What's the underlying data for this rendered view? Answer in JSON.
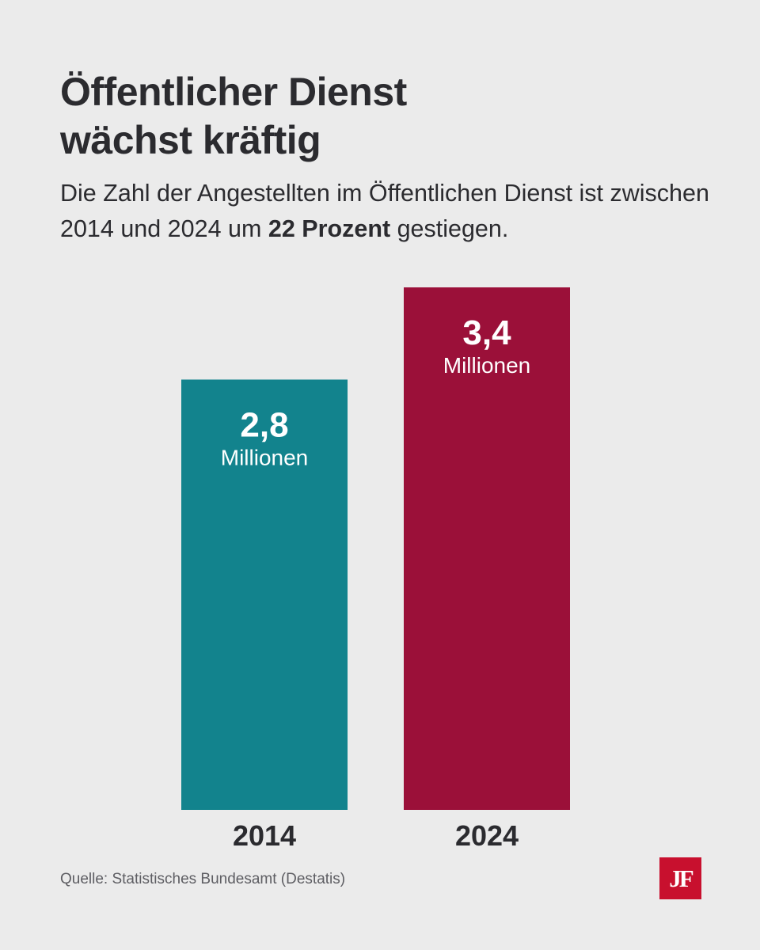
{
  "header": {
    "title_line1": "Öffentlicher Dienst",
    "title_line2": "wächst kräftig",
    "subtitle_part1": "Die Zahl der Angestellten im Öffentlichen Dienst ist zwischen 2014 und 2024 um ",
    "subtitle_bold": "22 Prozent",
    "subtitle_part2": " gestiegen."
  },
  "chart_data": {
    "type": "bar",
    "categories": [
      "2014",
      "2024"
    ],
    "values": [
      2.8,
      3.4
    ],
    "value_labels": [
      "2,8",
      "3,4"
    ],
    "unit_label": "Millionen",
    "colors": [
      "#12838d",
      "#9b1039"
    ],
    "ylim": [
      0,
      3.4
    ],
    "grid": false,
    "legend": "none"
  },
  "footer": {
    "source": "Quelle: Statistisches Bundesamt (Destatis)",
    "logo_text": "JF",
    "logo_color": "#c8102e"
  }
}
